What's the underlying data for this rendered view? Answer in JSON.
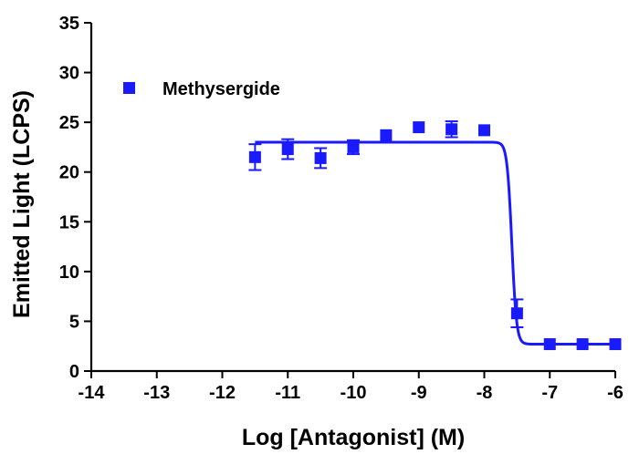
{
  "chart_data": {
    "type": "scatter",
    "title": "",
    "xlabel": "Log [Antagonist] (M)",
    "ylabel": "Emitted Light (LCPS)",
    "xlim": [
      -14,
      -6
    ],
    "ylim": [
      0,
      35
    ],
    "xticks": [
      -14,
      -13,
      -12,
      -11,
      -10,
      -9,
      -8,
      -7,
      -6
    ],
    "yticks": [
      0,
      5,
      10,
      15,
      20,
      25,
      30,
      35
    ],
    "grid": false,
    "legend_position": "top-left",
    "series_color": "#1a1aff",
    "series": [
      {
        "name": "Methysergide",
        "marker": "square",
        "x": [
          -11.5,
          -11.0,
          -10.5,
          -10.0,
          -9.5,
          -9.0,
          -8.5,
          -8.0,
          -7.5,
          -7.0,
          -6.5,
          -6.0
        ],
        "y": [
          21.5,
          22.3,
          21.4,
          22.5,
          23.7,
          24.5,
          24.3,
          24.2,
          5.8,
          2.7,
          2.7,
          2.7
        ],
        "error": [
          1.3,
          1.0,
          1.0,
          0.7,
          0.0,
          0.0,
          0.8,
          0.0,
          1.4,
          0.0,
          0.0,
          0.0
        ]
      }
    ],
    "fit": {
      "model": "sigmoidal-dose-response",
      "top": 23.0,
      "bottom": 2.7,
      "log_ic50": -7.58,
      "hill_slope": -12,
      "x_range": [
        -11.5,
        -6.0
      ]
    }
  }
}
